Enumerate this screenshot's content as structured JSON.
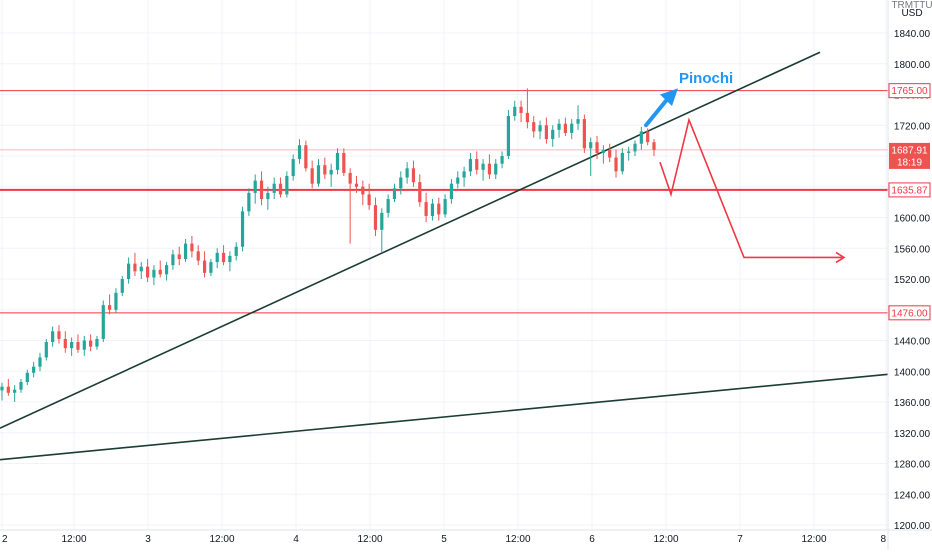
{
  "header": {
    "symbol_fragment": "TRMTTU",
    "currency": "USD"
  },
  "chart_data": {
    "type": "candlestick",
    "y_axis": {
      "ticks": [
        1840,
        1800,
        1760,
        1720,
        1680,
        1640,
        1600,
        1560,
        1520,
        1480,
        1440,
        1400,
        1360,
        1320,
        1280,
        1240,
        1200
      ],
      "decimals": 2,
      "range": [
        1196,
        1864
      ]
    },
    "x_axis": {
      "labels": [
        "2",
        "12:00",
        "3",
        "12:00",
        "4",
        "12:00",
        "5",
        "12:00",
        "6",
        "12:00",
        "7",
        "12:00",
        "8"
      ]
    },
    "grid": true,
    "colors": {
      "up": "#26a69a",
      "down": "#ef5350",
      "level": "#f23645",
      "trendline": "#1b3d33",
      "projection": "#f23645",
      "annotation": "#2196f3",
      "grid": "#f0f3fa"
    },
    "candles": [
      {
        "o": 1375,
        "h": 1385,
        "l": 1362,
        "c": 1380
      },
      {
        "o": 1380,
        "h": 1390,
        "l": 1368,
        "c": 1372
      },
      {
        "o": 1372,
        "h": 1382,
        "l": 1360,
        "c": 1376
      },
      {
        "o": 1376,
        "h": 1390,
        "l": 1372,
        "c": 1386
      },
      {
        "o": 1386,
        "h": 1402,
        "l": 1382,
        "c": 1398
      },
      {
        "o": 1398,
        "h": 1412,
        "l": 1392,
        "c": 1406
      },
      {
        "o": 1406,
        "h": 1424,
        "l": 1400,
        "c": 1418
      },
      {
        "o": 1418,
        "h": 1442,
        "l": 1414,
        "c": 1438
      },
      {
        "o": 1438,
        "h": 1458,
        "l": 1432,
        "c": 1452
      },
      {
        "o": 1452,
        "h": 1460,
        "l": 1436,
        "c": 1442
      },
      {
        "o": 1442,
        "h": 1452,
        "l": 1424,
        "c": 1430
      },
      {
        "o": 1430,
        "h": 1444,
        "l": 1420,
        "c": 1438
      },
      {
        "o": 1438,
        "h": 1448,
        "l": 1424,
        "c": 1428
      },
      {
        "o": 1428,
        "h": 1446,
        "l": 1420,
        "c": 1440
      },
      {
        "o": 1440,
        "h": 1448,
        "l": 1426,
        "c": 1432
      },
      {
        "o": 1432,
        "h": 1446,
        "l": 1428,
        "c": 1442
      },
      {
        "o": 1442,
        "h": 1492,
        "l": 1438,
        "c": 1486
      },
      {
        "o": 1486,
        "h": 1500,
        "l": 1474,
        "c": 1480
      },
      {
        "o": 1480,
        "h": 1508,
        "l": 1476,
        "c": 1502
      },
      {
        "o": 1502,
        "h": 1524,
        "l": 1498,
        "c": 1520
      },
      {
        "o": 1520,
        "h": 1548,
        "l": 1514,
        "c": 1540
      },
      {
        "o": 1540,
        "h": 1554,
        "l": 1524,
        "c": 1530
      },
      {
        "o": 1530,
        "h": 1542,
        "l": 1520,
        "c": 1536
      },
      {
        "o": 1536,
        "h": 1546,
        "l": 1516,
        "c": 1522
      },
      {
        "o": 1522,
        "h": 1538,
        "l": 1512,
        "c": 1532
      },
      {
        "o": 1532,
        "h": 1544,
        "l": 1522,
        "c": 1526
      },
      {
        "o": 1526,
        "h": 1542,
        "l": 1518,
        "c": 1538
      },
      {
        "o": 1538,
        "h": 1558,
        "l": 1532,
        "c": 1552
      },
      {
        "o": 1552,
        "h": 1562,
        "l": 1538,
        "c": 1546
      },
      {
        "o": 1546,
        "h": 1572,
        "l": 1542,
        "c": 1566
      },
      {
        "o": 1566,
        "h": 1576,
        "l": 1548,
        "c": 1556
      },
      {
        "o": 1556,
        "h": 1564,
        "l": 1538,
        "c": 1544
      },
      {
        "o": 1544,
        "h": 1556,
        "l": 1522,
        "c": 1528
      },
      {
        "o": 1528,
        "h": 1546,
        "l": 1524,
        "c": 1542
      },
      {
        "o": 1542,
        "h": 1560,
        "l": 1534,
        "c": 1554
      },
      {
        "o": 1554,
        "h": 1564,
        "l": 1538,
        "c": 1542
      },
      {
        "o": 1542,
        "h": 1556,
        "l": 1530,
        "c": 1550
      },
      {
        "o": 1550,
        "h": 1568,
        "l": 1544,
        "c": 1562
      },
      {
        "o": 1562,
        "h": 1614,
        "l": 1556,
        "c": 1608
      },
      {
        "o": 1608,
        "h": 1638,
        "l": 1602,
        "c": 1632
      },
      {
        "o": 1632,
        "h": 1656,
        "l": 1618,
        "c": 1648
      },
      {
        "o": 1648,
        "h": 1660,
        "l": 1616,
        "c": 1624
      },
      {
        "o": 1624,
        "h": 1640,
        "l": 1610,
        "c": 1632
      },
      {
        "o": 1632,
        "h": 1652,
        "l": 1624,
        "c": 1644
      },
      {
        "o": 1644,
        "h": 1652,
        "l": 1626,
        "c": 1630
      },
      {
        "o": 1630,
        "h": 1660,
        "l": 1626,
        "c": 1654
      },
      {
        "o": 1654,
        "h": 1682,
        "l": 1648,
        "c": 1676
      },
      {
        "o": 1676,
        "h": 1702,
        "l": 1670,
        "c": 1694
      },
      {
        "o": 1694,
        "h": 1700,
        "l": 1660,
        "c": 1664
      },
      {
        "o": 1664,
        "h": 1674,
        "l": 1638,
        "c": 1644
      },
      {
        "o": 1644,
        "h": 1676,
        "l": 1640,
        "c": 1668
      },
      {
        "o": 1668,
        "h": 1678,
        "l": 1650,
        "c": 1656
      },
      {
        "o": 1656,
        "h": 1670,
        "l": 1640,
        "c": 1662
      },
      {
        "o": 1662,
        "h": 1690,
        "l": 1656,
        "c": 1684
      },
      {
        "o": 1684,
        "h": 1690,
        "l": 1654,
        "c": 1658
      },
      {
        "o": 1658,
        "h": 1664,
        "l": 1566,
        "c": 1644
      },
      {
        "o": 1644,
        "h": 1654,
        "l": 1632,
        "c": 1640
      },
      {
        "o": 1640,
        "h": 1648,
        "l": 1616,
        "c": 1630
      },
      {
        "o": 1630,
        "h": 1644,
        "l": 1610,
        "c": 1616
      },
      {
        "o": 1616,
        "h": 1626,
        "l": 1576,
        "c": 1584
      },
      {
        "o": 1584,
        "h": 1612,
        "l": 1554,
        "c": 1606
      },
      {
        "o": 1606,
        "h": 1630,
        "l": 1600,
        "c": 1624
      },
      {
        "o": 1624,
        "h": 1644,
        "l": 1620,
        "c": 1638
      },
      {
        "o": 1638,
        "h": 1660,
        "l": 1630,
        "c": 1652
      },
      {
        "o": 1652,
        "h": 1672,
        "l": 1644,
        "c": 1664
      },
      {
        "o": 1664,
        "h": 1674,
        "l": 1640,
        "c": 1646
      },
      {
        "o": 1646,
        "h": 1656,
        "l": 1614,
        "c": 1620
      },
      {
        "o": 1620,
        "h": 1632,
        "l": 1594,
        "c": 1602
      },
      {
        "o": 1602,
        "h": 1624,
        "l": 1596,
        "c": 1618
      },
      {
        "o": 1618,
        "h": 1626,
        "l": 1596,
        "c": 1604
      },
      {
        "o": 1604,
        "h": 1630,
        "l": 1600,
        "c": 1624
      },
      {
        "o": 1624,
        "h": 1650,
        "l": 1618,
        "c": 1644
      },
      {
        "o": 1644,
        "h": 1660,
        "l": 1638,
        "c": 1652
      },
      {
        "o": 1652,
        "h": 1666,
        "l": 1640,
        "c": 1660
      },
      {
        "o": 1660,
        "h": 1684,
        "l": 1654,
        "c": 1676
      },
      {
        "o": 1676,
        "h": 1686,
        "l": 1656,
        "c": 1662
      },
      {
        "o": 1662,
        "h": 1676,
        "l": 1648,
        "c": 1670
      },
      {
        "o": 1670,
        "h": 1682,
        "l": 1650,
        "c": 1656
      },
      {
        "o": 1656,
        "h": 1676,
        "l": 1650,
        "c": 1670
      },
      {
        "o": 1670,
        "h": 1686,
        "l": 1664,
        "c": 1680
      },
      {
        "o": 1680,
        "h": 1740,
        "l": 1676,
        "c": 1732
      },
      {
        "o": 1732,
        "h": 1752,
        "l": 1726,
        "c": 1744
      },
      {
        "o": 1744,
        "h": 1752,
        "l": 1724,
        "c": 1736
      },
      {
        "o": 1736,
        "h": 1768,
        "l": 1716,
        "c": 1724
      },
      {
        "o": 1724,
        "h": 1732,
        "l": 1704,
        "c": 1712
      },
      {
        "o": 1712,
        "h": 1726,
        "l": 1702,
        "c": 1720
      },
      {
        "o": 1720,
        "h": 1730,
        "l": 1696,
        "c": 1702
      },
      {
        "o": 1702,
        "h": 1720,
        "l": 1692,
        "c": 1714
      },
      {
        "o": 1714,
        "h": 1728,
        "l": 1704,
        "c": 1722
      },
      {
        "o": 1722,
        "h": 1730,
        "l": 1706,
        "c": 1710
      },
      {
        "o": 1710,
        "h": 1728,
        "l": 1702,
        "c": 1722
      },
      {
        "o": 1722,
        "h": 1746,
        "l": 1714,
        "c": 1728
      },
      {
        "o": 1728,
        "h": 1734,
        "l": 1684,
        "c": 1690
      },
      {
        "o": 1690,
        "h": 1704,
        "l": 1654,
        "c": 1698
      },
      {
        "o": 1698,
        "h": 1706,
        "l": 1676,
        "c": 1684
      },
      {
        "o": 1684,
        "h": 1694,
        "l": 1670,
        "c": 1688
      },
      {
        "o": 1688,
        "h": 1696,
        "l": 1672,
        "c": 1678
      },
      {
        "o": 1678,
        "h": 1688,
        "l": 1652,
        "c": 1660
      },
      {
        "o": 1660,
        "h": 1690,
        "l": 1656,
        "c": 1684
      },
      {
        "o": 1684,
        "h": 1692,
        "l": 1674,
        "c": 1686
      },
      {
        "o": 1686,
        "h": 1700,
        "l": 1680,
        "c": 1696
      },
      {
        "o": 1696,
        "h": 1718,
        "l": 1688,
        "c": 1712
      },
      {
        "o": 1712,
        "h": 1716,
        "l": 1694,
        "c": 1698
      },
      {
        "o": 1698,
        "h": 1702,
        "l": 1680,
        "c": 1688
      }
    ],
    "levels": [
      {
        "value": 1765.0,
        "label": "1765.00",
        "weight": "thin"
      },
      {
        "value": 1635.87,
        "label": "1635.87",
        "weight": "thick"
      },
      {
        "value": 1476.0,
        "label": "1476.00",
        "weight": "thin"
      },
      {
        "value": 1687.91,
        "label": "1687.91",
        "weight": "faint"
      }
    ],
    "current_price": {
      "value": 1687.91,
      "label": "1687.91",
      "countdown": "18:19"
    },
    "annotation": {
      "text": "Pinochi"
    }
  }
}
